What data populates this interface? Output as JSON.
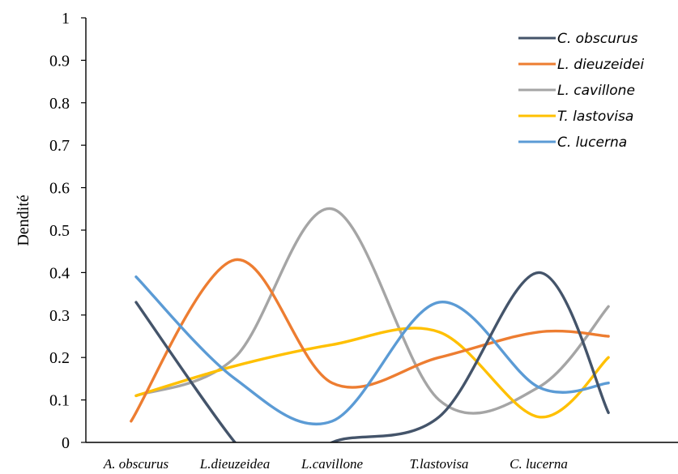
{
  "chart_data": {
    "type": "line",
    "smooth": true,
    "ylabel": "Dendité",
    "xlabel": "",
    "ylim": [
      0,
      1
    ],
    "yticks": [
      "0",
      "0.1",
      "0.2",
      "0.3",
      "0.4",
      "0.5",
      "0.6",
      "0.7",
      "0.8",
      "0.9",
      "1"
    ],
    "categories": [
      "A. obscurus",
      "L.dieuzeidea",
      "L.cavillone",
      "T.lastovisa",
      "C. lucerna"
    ],
    "grid": false,
    "legend_position": "top-right",
    "series": [
      {
        "name": "C. obscurus",
        "color": "#44546a",
        "x": [
          0,
          1,
          1.5,
          2,
          3,
          4,
          4.7
        ],
        "values": [
          0.33,
          0,
          -0.1,
          0,
          0.06,
          0.4,
          0.07
        ]
      },
      {
        "name": "L. dieuzeidei",
        "color": "#ed7d31",
        "x": [
          -0.05,
          1,
          2,
          3,
          4,
          4.7
        ],
        "values": [
          0.05,
          0.43,
          0.14,
          0.2,
          0.26,
          0.25
        ]
      },
      {
        "name": "L. cavillone",
        "color": "#a5a5a5",
        "x": [
          0,
          1,
          2,
          3,
          4,
          4.7
        ],
        "values": [
          0.11,
          0.2,
          0.55,
          0.1,
          0.13,
          0.32
        ]
      },
      {
        "name": "T. lastovisa",
        "color": "#ffc000",
        "x": [
          0,
          1,
          2,
          3,
          4,
          4.7
        ],
        "values": [
          0.11,
          0.18,
          0.23,
          0.26,
          0.06,
          0.2
        ]
      },
      {
        "name": "C. lucerna",
        "color": "#5b9bd5",
        "x": [
          0,
          1,
          2,
          3,
          4,
          4.7
        ],
        "values": [
          0.39,
          0.15,
          0.05,
          0.33,
          0.13,
          0.14
        ]
      }
    ]
  }
}
